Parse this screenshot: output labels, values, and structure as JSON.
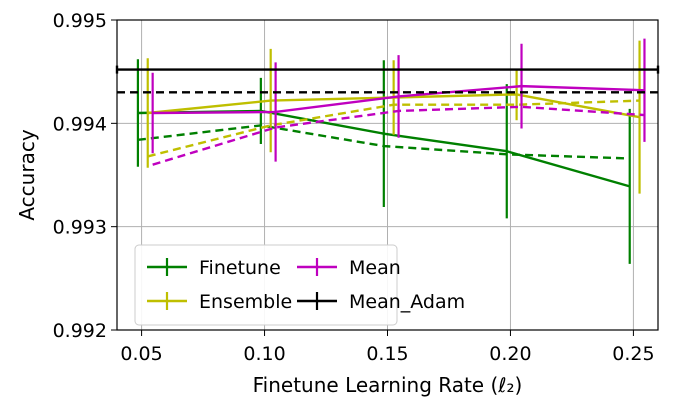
{
  "chart_data": {
    "type": "line",
    "xlabel": "Finetune Learning Rate (ℓ₂)",
    "ylabel": "Accuracy",
    "xlim": [
      0.04,
      0.26
    ],
    "ylim": [
      0.992,
      0.995
    ],
    "xticks": [
      "0.05",
      "0.10",
      "0.15",
      "0.20",
      "0.25"
    ],
    "yticks": [
      "0.992",
      "0.993",
      "0.994",
      "0.995"
    ],
    "grid": true,
    "legend_position": "lower-left",
    "series": [
      {
        "name": "Finetune",
        "color": "#008000",
        "style": "solid-with-errorbars",
        "x": [
          0.05,
          0.1,
          0.15,
          0.2,
          0.25
        ],
        "offset": -0.0015,
        "y": [
          0.9941,
          0.99412,
          0.9939,
          0.99373,
          0.99339
        ],
        "err": [
          0.00052,
          0.00032,
          0.00071,
          0.00065,
          0.00075
        ]
      },
      {
        "name": "Finetune (dashed)",
        "color": "#008000",
        "style": "dashed",
        "x": [
          0.05,
          0.1,
          0.15,
          0.2,
          0.25
        ],
        "offset": -0.0015,
        "y": [
          0.99384,
          0.99398,
          0.99378,
          0.9937,
          0.99366
        ]
      },
      {
        "name": "Ensemble",
        "color": "#bfbf00",
        "style": "solid-with-errorbars",
        "x": [
          0.05,
          0.1,
          0.15,
          0.2,
          0.25
        ],
        "offset": 0.0025,
        "y": [
          0.9941,
          0.99422,
          0.99425,
          0.99428,
          0.99406
        ],
        "err": [
          0.00053,
          0.0005,
          0.00036,
          0.00025,
          0.00074
        ]
      },
      {
        "name": "Ensemble (dashed)",
        "color": "#bfbf00",
        "style": "dashed",
        "x": [
          0.05,
          0.1,
          0.15,
          0.2,
          0.25
        ],
        "offset": 0.0025,
        "y": [
          0.99368,
          0.99398,
          0.99418,
          0.99418,
          0.99422
        ]
      },
      {
        "name": "Mean",
        "color": "#bf00bf",
        "style": "solid-with-errorbars",
        "x": [
          0.05,
          0.1,
          0.15,
          0.2,
          0.25
        ],
        "offset": 0.0045,
        "y": [
          0.9941,
          0.99411,
          0.99426,
          0.99436,
          0.99432
        ],
        "err": [
          0.00039,
          0.00048,
          0.0004,
          0.00041,
          0.0005
        ]
      },
      {
        "name": "Mean (dashed)",
        "color": "#bf00bf",
        "style": "dashed",
        "x": [
          0.05,
          0.1,
          0.15,
          0.2,
          0.25
        ],
        "offset": 0.0045,
        "y": [
          0.9936,
          0.99396,
          0.99412,
          0.99416,
          0.99408
        ]
      },
      {
        "name": "Mean_Adam",
        "color": "#000000",
        "style": "solid-horizontal",
        "y": 0.99452
      },
      {
        "name": "Mean_Adam (dashed)",
        "color": "#000000",
        "style": "dashed-horizontal",
        "y": 0.9943
      }
    ],
    "legend": [
      {
        "label": "Finetune",
        "color": "#008000"
      },
      {
        "label": "Ensemble",
        "color": "#bfbf00"
      },
      {
        "label": "Mean",
        "color": "#bf00bf"
      },
      {
        "label": "Mean_Adam",
        "color": "#000000"
      }
    ]
  }
}
